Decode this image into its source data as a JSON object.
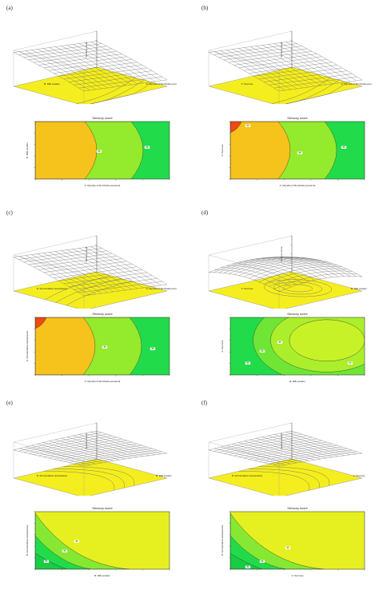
{
  "figure": {
    "panels": [
      {
        "id": "a",
        "label": "(a)",
        "surface": {
          "zlabel": "Sensory score",
          "xlabel": "A: Mycelia of Morchella esculenta",
          "ylabel": "B: Milk powder"
        },
        "contour": {
          "title": "Sensory score",
          "xlabel": "A: Mycelia of Morchella esculenta",
          "ylabel": "B: Milk powder",
          "labels": [
            "88",
            "89"
          ]
        }
      },
      {
        "id": "b",
        "label": "(b)",
        "surface": {
          "zlabel": "Sensory score",
          "xlabel": "A: Mycelia of Morchella esculenta",
          "ylabel": "C: Sucrose"
        },
        "contour": {
          "title": "Sensory score",
          "xlabel": "A: Mycelia of Morchella esculenta",
          "ylabel": "C: Sucrose",
          "labels": [
            "90",
            "88",
            "86"
          ]
        }
      },
      {
        "id": "c",
        "label": "(c)",
        "surface": {
          "zlabel": "Sensory score",
          "xlabel": "A: Mycelia of Morchella esculenta",
          "ylabel": "D: Fermentation temperature"
        },
        "contour": {
          "title": "Sensory score",
          "xlabel": "A: Mycelia of Morchella esculenta",
          "ylabel": "D: Fermentation temperature",
          "labels": [
            "88",
            "86"
          ]
        }
      },
      {
        "id": "d",
        "label": "(d)",
        "surface": {
          "zlabel": "Sensory score",
          "xlabel": "B: Milk powder",
          "ylabel": "C: Sucrose"
        },
        "contour": {
          "title": "Sensory score",
          "xlabel": "B: Milk powder",
          "ylabel": "C: Sucrose",
          "labels": [
            "84",
            "85",
            "86",
            "87"
          ]
        }
      },
      {
        "id": "e",
        "label": "(e)",
        "surface": {
          "zlabel": "Sensory score",
          "xlabel": "B: Milk powder",
          "ylabel": "D: Fermentation temperature"
        },
        "contour": {
          "title": "Sensory score",
          "xlabel": "B: Milk powder",
          "ylabel": "D: Fermentation temperature",
          "labels": [
            "86",
            "85",
            "84"
          ]
        }
      },
      {
        "id": "f",
        "label": "(f)",
        "surface": {
          "zlabel": "Sensory score",
          "xlabel": "C: Sucrose",
          "ylabel": "D: Fermentation temperature"
        },
        "contour": {
          "title": "Sensory score",
          "xlabel": "C: Sucrose",
          "ylabel": "D: Fermentation temperature",
          "labels": [
            "86",
            "85",
            "84"
          ]
        }
      }
    ]
  },
  "chart_data": [
    {
      "type": "heatmap",
      "panel": "a-surface",
      "kind": "3D response surface",
      "zlabel": "Sensory score",
      "xlabel": "A: Mycelia of Morchella esculenta",
      "ylabel": "B: Milk powder",
      "zlim": [
        80,
        90
      ],
      "surface_tilt": "high at back-left, descending to front-right",
      "colors": {
        "base": "#f5ee1e",
        "mesh": "#555555"
      }
    },
    {
      "type": "heatmap",
      "panel": "a-contour",
      "kind": "contour",
      "title": "Sensory score",
      "xlabel": "A: Mycelia of Morchella esculenta",
      "ylabel": "B: Milk powder",
      "contour_levels": [
        88,
        89
      ],
      "colors": {
        "high": "#f6c21c",
        "mid": "#94ea2c",
        "low": "#22db4a"
      }
    },
    {
      "type": "heatmap",
      "panel": "b-surface",
      "kind": "3D response surface",
      "zlabel": "Sensory score",
      "xlabel": "A: Mycelia of Morchella esculenta",
      "ylabel": "C: Sucrose",
      "zlim": [
        80,
        90
      ],
      "colors": {
        "base": "#f5ee1e",
        "mesh": "#555555"
      }
    },
    {
      "type": "heatmap",
      "panel": "b-contour",
      "kind": "contour",
      "title": "Sensory score",
      "xlabel": "A: Mycelia of Morchella esculenta",
      "ylabel": "C: Sucrose",
      "contour_levels": [
        86,
        88,
        90
      ],
      "colors": {
        "max": "#ee4a12",
        "high": "#f6c21c",
        "low": "#22db4a"
      }
    },
    {
      "type": "heatmap",
      "panel": "c-surface",
      "kind": "3D response surface",
      "zlabel": "Sensory score",
      "xlabel": "A: Mycelia of Morchella esculenta",
      "ylabel": "D: Fermentation temperature",
      "zlim": [
        80,
        90
      ],
      "colors": {
        "base": "#f5ee1e",
        "mesh": "#555555"
      }
    },
    {
      "type": "heatmap",
      "panel": "c-contour",
      "kind": "contour",
      "title": "Sensory score",
      "xlabel": "A: Mycelia of Morchella esculenta",
      "ylabel": "D: Fermentation temperature",
      "contour_levels": [
        86,
        88
      ],
      "colors": {
        "max": "#ee4a12",
        "high": "#f6c21c",
        "low": "#22db4a"
      }
    },
    {
      "type": "heatmap",
      "panel": "d-surface",
      "kind": "3D response surface",
      "zlabel": "Sensory score",
      "xlabel": "B: Milk powder",
      "ylabel": "C: Sucrose",
      "zlim": [
        80,
        90
      ],
      "colors": {
        "base": "#f5ee1e",
        "mesh": "#555555"
      }
    },
    {
      "type": "heatmap",
      "panel": "d-contour",
      "kind": "contour",
      "title": "Sensory score",
      "xlabel": "B: Milk powder",
      "ylabel": "C: Sucrose",
      "contour_levels": [
        84,
        85,
        86,
        87
      ],
      "colors": {
        "high": "#c8f228",
        "mid": "#6fe636",
        "low": "#22db4a"
      }
    },
    {
      "type": "heatmap",
      "panel": "e-surface",
      "kind": "3D response surface",
      "zlabel": "Sensory score",
      "xlabel": "B: Milk powder",
      "ylabel": "D: Fermentation temperature",
      "zlim": [
        80,
        90
      ],
      "colors": {
        "base": "#f5ee1e",
        "mesh": "#555555"
      }
    },
    {
      "type": "heatmap",
      "panel": "e-contour",
      "kind": "contour",
      "title": "Sensory score",
      "xlabel": "B: Milk powder",
      "ylabel": "D: Fermentation temperature",
      "contour_levels": [
        84,
        85,
        86
      ],
      "colors": {
        "high": "#e6f020",
        "mid": "#86e832",
        "low": "#22db4a"
      }
    },
    {
      "type": "heatmap",
      "panel": "f-surface",
      "kind": "3D response surface",
      "zlabel": "Sensory score",
      "xlabel": "C: Sucrose",
      "ylabel": "D: Fermentation temperature",
      "zlim": [
        80,
        90
      ],
      "colors": {
        "base": "#f5ee1e",
        "mesh": "#555555"
      }
    },
    {
      "type": "heatmap",
      "panel": "f-contour",
      "kind": "contour",
      "title": "Sensory score",
      "xlabel": "C: Sucrose",
      "ylabel": "D: Fermentation temperature",
      "contour_levels": [
        84,
        85,
        86
      ],
      "colors": {
        "high": "#e6f020",
        "mid": "#86e832",
        "low": "#22db4a"
      }
    }
  ]
}
